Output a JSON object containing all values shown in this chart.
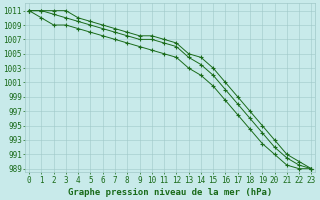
{
  "x": [
    0,
    1,
    2,
    3,
    4,
    5,
    6,
    7,
    8,
    9,
    10,
    11,
    12,
    13,
    14,
    15,
    16,
    17,
    18,
    19,
    20,
    21,
    22,
    23
  ],
  "line_top": [
    1011,
    1011,
    1011,
    1011,
    1010,
    1009.5,
    1009,
    1008.5,
    1008,
    1007.5,
    1007.5,
    1007,
    1006.5,
    1005,
    1004.5,
    1003,
    1001,
    999,
    997,
    995,
    993,
    991,
    990,
    989
  ],
  "line_mid": [
    1011,
    1011,
    1010.5,
    1010,
    1009.5,
    1009,
    1008.5,
    1008,
    1007.5,
    1007,
    1007,
    1006.5,
    1006,
    1004.5,
    1003.5,
    1002,
    1000,
    998,
    996,
    994,
    992,
    990.5,
    989.5,
    989
  ],
  "line_bot": [
    1011,
    1010,
    1009,
    1009,
    1008.5,
    1008,
    1007.5,
    1007,
    1006.5,
    1006,
    1005.5,
    1005,
    1004.5,
    1003,
    1002,
    1000.5,
    998.5,
    996.5,
    994.5,
    992.5,
    991,
    989.5,
    989,
    989
  ],
  "ylim": [
    988.5,
    1012
  ],
  "xlim": [
    -0.3,
    23.3
  ],
  "yticks": [
    989,
    991,
    993,
    995,
    997,
    999,
    1001,
    1003,
    1005,
    1007,
    1009,
    1011
  ],
  "xticks": [
    0,
    1,
    2,
    3,
    4,
    5,
    6,
    7,
    8,
    9,
    10,
    11,
    12,
    13,
    14,
    15,
    16,
    17,
    18,
    19,
    20,
    21,
    22,
    23
  ],
  "line_color": "#1a6b1a",
  "bg_color": "#c8eaea",
  "grid_color": "#a0c8c8",
  "xlabel": "Graphe pression niveau de la mer (hPa)",
  "tick_fontsize": 5.5,
  "label_fontsize": 6.5,
  "marker": "+",
  "marker_size": 3.5,
  "marker_lw": 0.8,
  "line_width": 0.7
}
